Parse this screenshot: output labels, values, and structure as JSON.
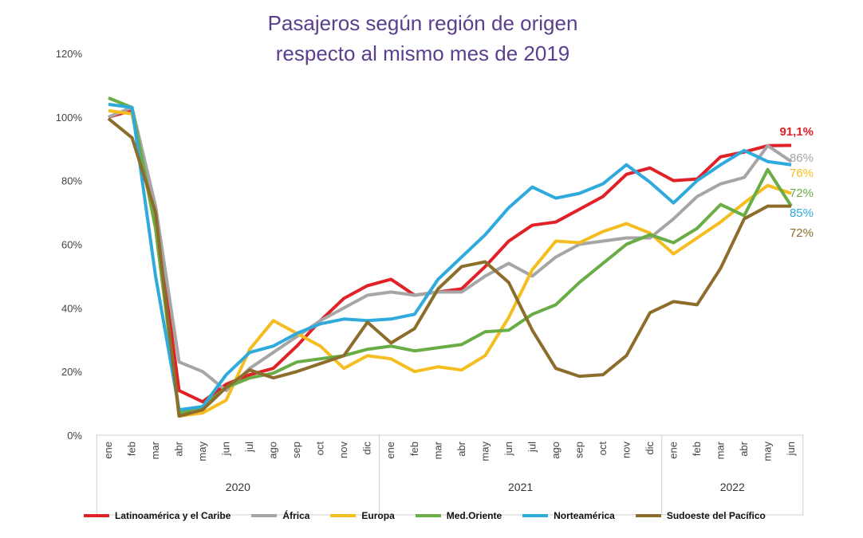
{
  "chart_data": {
    "type": "line",
    "title": "Pasajeros según región de origen",
    "subtitle": "respecto al mismo mes de 2019",
    "ylim": [
      0,
      120
    ],
    "yticks": [
      "0%",
      "20%",
      "40%",
      "60%",
      "80%",
      "100%",
      "120%"
    ],
    "months": [
      "ene",
      "feb",
      "mar",
      "abr",
      "may",
      "jun",
      "jul",
      "ago",
      "sep",
      "oct",
      "nov",
      "dic",
      "ene",
      "feb",
      "mar",
      "abr",
      "may",
      "jun",
      "jul",
      "ago",
      "sep",
      "oct",
      "nov",
      "dic",
      "ene",
      "feb",
      "mar",
      "abr",
      "may",
      "jun"
    ],
    "years": [
      {
        "label": "2020",
        "count": 12
      },
      {
        "label": "2021",
        "count": 12
      },
      {
        "label": "2022",
        "count": 6
      }
    ],
    "grid": false,
    "legend": "bottom",
    "series": [
      {
        "name": "Latinoamérica y el Caribe",
        "color": "#e02127",
        "end_label": "91,1%",
        "values": [
          100,
          102,
          70,
          14,
          10.5,
          16,
          19,
          21,
          28,
          36,
          43,
          47,
          49,
          44,
          45,
          46,
          53,
          61,
          66,
          67,
          71,
          75,
          82,
          84,
          80,
          80.5,
          87.5,
          89,
          91,
          91.1
        ]
      },
      {
        "name": "África",
        "color": "#a6a6a6",
        "end_label": "86%",
        "values": [
          100,
          103,
          72,
          23,
          20,
          14,
          21,
          26,
          31,
          36,
          40,
          44,
          45,
          44,
          45,
          45,
          50,
          54,
          50,
          56,
          60,
          61,
          62,
          62,
          68,
          75,
          79,
          81,
          91,
          86
        ]
      },
      {
        "name": "Europa",
        "color": "#f5bd1f",
        "end_label": "76%",
        "values": [
          102,
          101,
          65,
          6,
          7,
          11,
          27,
          36,
          32,
          28,
          21,
          25,
          24,
          20,
          21.5,
          20.5,
          25,
          37,
          52,
          61,
          60.5,
          64,
          66.5,
          63.5,
          57,
          62,
          67,
          73,
          78.5,
          76
        ]
      },
      {
        "name": "Med.Oriente",
        "color": "#6aac45",
        "end_label": "72%",
        "values": [
          106,
          103,
          65,
          7,
          9,
          15,
          18,
          19.5,
          23,
          24,
          25,
          27,
          28,
          26.5,
          27.5,
          28.5,
          32.5,
          33,
          38,
          41,
          48,
          54,
          60,
          63,
          60.5,
          65,
          72.5,
          69,
          83.5,
          72
        ]
      },
      {
        "name": "Norteamérica",
        "color": "#2eaadc",
        "end_label": "85%",
        "values": [
          104,
          103,
          50,
          8,
          9,
          19,
          26,
          28,
          32,
          35,
          36.5,
          36,
          36.5,
          38,
          49,
          56,
          63,
          71.5,
          78,
          74.5,
          76,
          79,
          85,
          79.5,
          73,
          80,
          85,
          89.5,
          86,
          85
        ]
      },
      {
        "name": "Sudoeste del Pacífico",
        "color": "#8c6d2c",
        "end_label": "72%",
        "values": [
          99.5,
          93.5,
          70,
          6,
          8,
          15,
          20.5,
          18,
          20,
          22.5,
          25,
          35.5,
          29,
          33.5,
          46,
          53,
          54.5,
          48,
          33,
          21,
          18.5,
          19,
          25,
          38.5,
          42,
          41,
          52.5,
          68,
          72,
          72
        ]
      }
    ]
  }
}
